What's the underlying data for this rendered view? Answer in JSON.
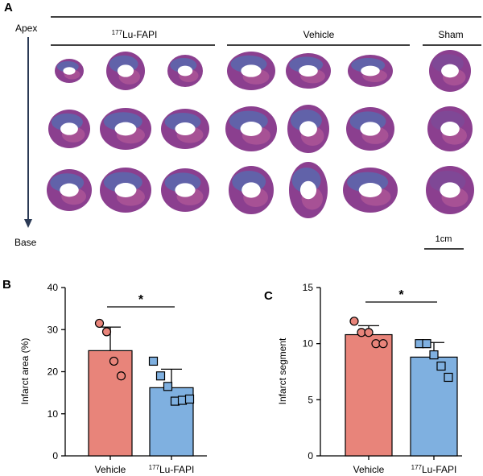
{
  "panel_a": {
    "label": "A",
    "apex_label": "Apex",
    "base_label": "Base",
    "groups": [
      {
        "name": "¹⁷⁷Lu-FAPI",
        "superscript": "177",
        "base": "Lu-FAPI"
      },
      {
        "name": "Vehicle"
      },
      {
        "name": "Sham"
      }
    ],
    "scale_bar_label": "1cm"
  },
  "colors": {
    "vehicle": "#e8847a",
    "lu_fapi": "#7fb0e0",
    "tissue_purple": "#8b3f8f",
    "tissue_blue": "#3f7fc0",
    "tissue_pink": "#c0609a"
  },
  "chart_data": [
    {
      "type": "bar",
      "panel_label": "B",
      "title": "",
      "categories": [
        "Vehicle",
        "¹⁷⁷Lu-FAPI"
      ],
      "category_labels": [
        {
          "text": "Vehicle"
        },
        {
          "superscript": "177",
          "base": "Lu-FAPI"
        }
      ],
      "values": [
        25.0,
        16.2
      ],
      "errors": [
        5.6,
        4.4
      ],
      "points": [
        [
          31.5,
          29.5,
          22.5,
          19.0
        ],
        [
          22.5,
          19.0,
          16.5,
          13.0,
          13.2,
          13.5
        ]
      ],
      "point_markers": [
        "circle",
        "square"
      ],
      "ylabel": "Infarct area (%)",
      "xlabel": "",
      "ylim": [
        0,
        40
      ],
      "yticks": [
        0,
        10,
        20,
        30,
        40
      ],
      "significance": "*"
    },
    {
      "type": "bar",
      "panel_label": "C",
      "title": "",
      "categories": [
        "Vehicle",
        "¹⁷⁷Lu-FAPI"
      ],
      "category_labels": [
        {
          "text": "Vehicle"
        },
        {
          "superscript": "177",
          "base": "Lu-FAPI"
        }
      ],
      "values": [
        10.8,
        8.8
      ],
      "errors": [
        0.8,
        1.3
      ],
      "points": [
        [
          12.0,
          11.0,
          11.0,
          10.0,
          10.0
        ],
        [
          10.0,
          10.0,
          9.0,
          8.0,
          7.0
        ]
      ],
      "point_markers": [
        "circle",
        "square"
      ],
      "ylabel": "Infarct segment",
      "xlabel": "",
      "ylim": [
        0,
        15
      ],
      "yticks": [
        0,
        5,
        10,
        15
      ],
      "significance": "*"
    }
  ]
}
